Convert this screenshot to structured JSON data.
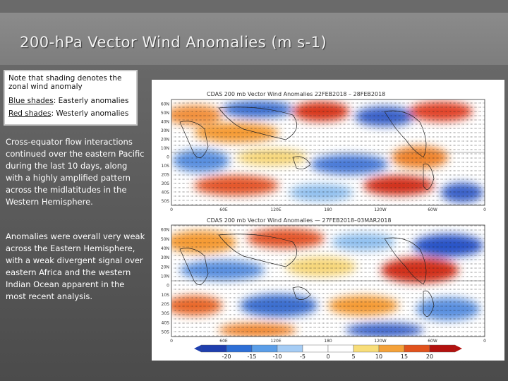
{
  "title": "200-hPa Vector Wind Anomalies  (m s-1)",
  "note": {
    "line1": "Note that shading denotes the zonal wind anomaly",
    "blue_key": "Blue shades",
    "blue_desc": ": Easterly anomalies",
    "red_key": "Red shades",
    "red_desc": ": Westerly anomalies"
  },
  "paragraphs": [
    "Cross-equator flow interactions continued over the eastern Pacific during the last 10 days, along with a highly amplified pattern across the midlatitudes in the Western Hemisphere.",
    "Anomalies were overall very weak across the Eastern Hemisphere, with a weak divergent signal over eastern Africa and the western Indian Ocean apparent in the most recent analysis."
  ],
  "maps": [
    {
      "title": "CDAS  200  mb  Vector  Wind  Anomalies          22FEB2018 – 28FEB2018"
    },
    {
      "title": "CDAS  200  mb  Vector  Wind  Anomalies   —   27FEB2018–03MAR2018"
    }
  ],
  "lat_ticks": [
    "60N",
    "50N",
    "40N",
    "30N",
    "20N",
    "10N",
    "0",
    "10S",
    "20S",
    "30S",
    "40S",
    "50S"
  ],
  "lon_ticks": [
    "0",
    "60E",
    "120E",
    "180",
    "120W",
    "60W",
    "0"
  ],
  "colorbar": {
    "labels": [
      "-20",
      "-15",
      "-10",
      "-5",
      "0",
      "5",
      "10",
      "15",
      "20"
    ],
    "colors": [
      "#1f3fae",
      "#2e6fd6",
      "#5b9ee8",
      "#a6cdf5",
      "#ffffff",
      "#ffffff",
      "#f8de7a",
      "#f4a23a",
      "#e1531d",
      "#b3120f"
    ]
  },
  "palette": {
    "blue_deep": "#2a55c8",
    "blue_light": "#8fbfef",
    "red_deep": "#d2301c",
    "orange": "#f59b36",
    "yellow": "#f7d77a"
  }
}
